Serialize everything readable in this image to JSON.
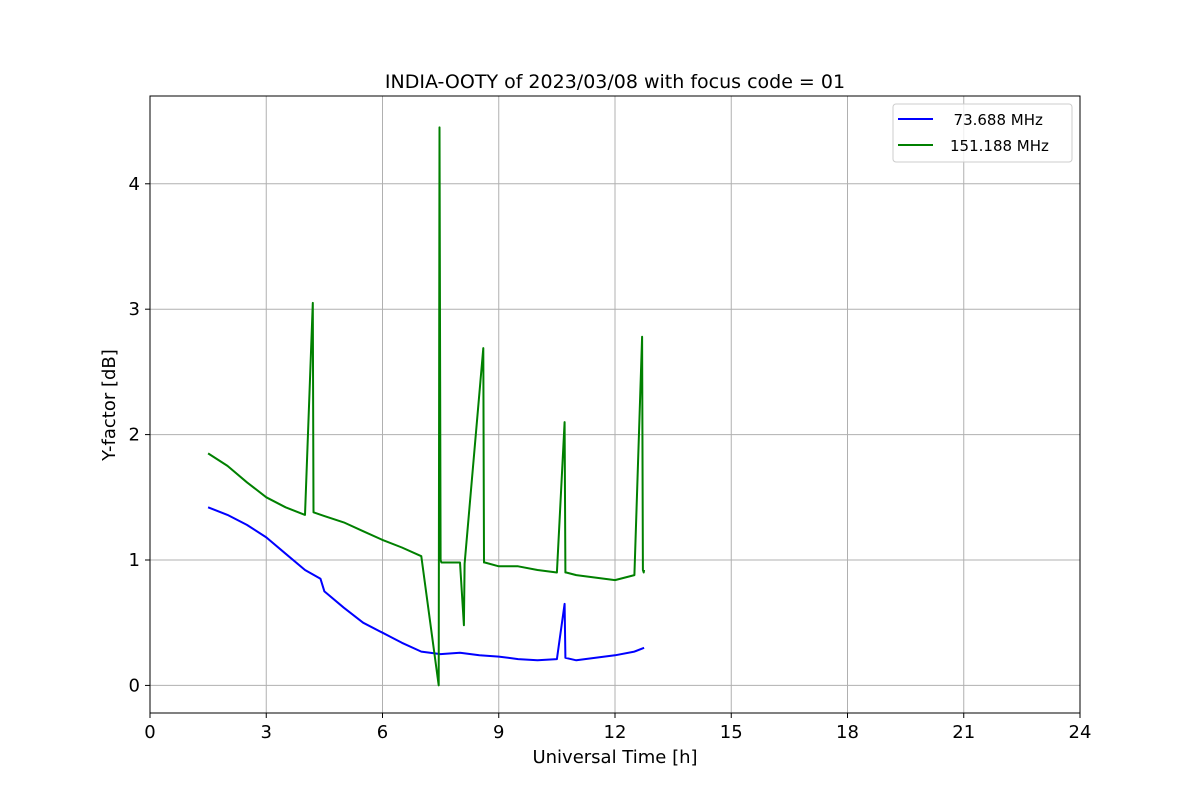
{
  "chart_data": {
    "type": "line",
    "title": "INDIA-OOTY of 2023/03/08 with focus code = 01",
    "xlabel": "Universal Time [h]",
    "ylabel": "Y-factor [dB]",
    "xlim": [
      0,
      24
    ],
    "ylim": [
      -0.22,
      4.7
    ],
    "x_ticks": [
      0,
      3,
      6,
      9,
      12,
      15,
      18,
      21,
      24
    ],
    "y_ticks": [
      0,
      1,
      2,
      3,
      4
    ],
    "grid": true,
    "legend_position": "top-right",
    "series": [
      {
        "name": "  73.688 MHz",
        "color": "#0000ff",
        "x": [
          1.5,
          2.0,
          2.5,
          3.0,
          3.5,
          4.0,
          4.4,
          4.5,
          5.0,
          5.5,
          6.0,
          6.5,
          7.0,
          7.5,
          8.0,
          8.5,
          9.0,
          9.5,
          10.0,
          10.5,
          10.7,
          10.72,
          11.0,
          11.5,
          12.0,
          12.5,
          12.75
        ],
        "values": [
          1.42,
          1.36,
          1.28,
          1.18,
          1.05,
          0.92,
          0.85,
          0.75,
          0.62,
          0.5,
          0.42,
          0.34,
          0.27,
          0.25,
          0.26,
          0.24,
          0.23,
          0.21,
          0.2,
          0.21,
          0.65,
          0.22,
          0.2,
          0.22,
          0.24,
          0.27,
          0.3
        ]
      },
      {
        "name": "151.188 MHz",
        "color": "#008000",
        "x": [
          1.5,
          2.0,
          2.5,
          3.0,
          3.5,
          4.0,
          4.2,
          4.22,
          4.5,
          5.0,
          5.5,
          6.0,
          6.5,
          7.0,
          7.45,
          7.47,
          7.5,
          7.52,
          8.0,
          8.1,
          8.12,
          8.6,
          8.62,
          8.64,
          9.0,
          9.5,
          10.0,
          10.5,
          10.7,
          10.72,
          10.74,
          11.0,
          11.5,
          12.0,
          12.5,
          12.7,
          12.72,
          12.74,
          12.75
        ],
        "values": [
          1.85,
          1.75,
          1.62,
          1.5,
          1.42,
          1.36,
          3.05,
          1.38,
          1.35,
          1.3,
          1.23,
          1.16,
          1.1,
          1.03,
          0.0,
          4.45,
          1.0,
          0.98,
          0.98,
          0.48,
          0.97,
          2.69,
          0.98,
          0.98,
          0.95,
          0.95,
          0.92,
          0.9,
          2.1,
          0.9,
          0.9,
          0.88,
          0.86,
          0.84,
          0.88,
          2.78,
          0.92,
          0.9,
          0.92
        ]
      }
    ]
  }
}
